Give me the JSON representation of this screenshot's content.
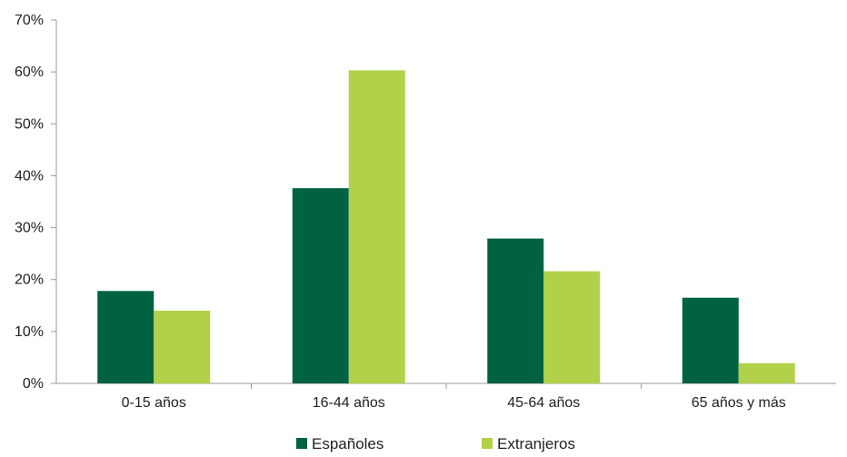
{
  "chart_data": {
    "type": "bar",
    "categories": [
      "0-15 años",
      "16-44 años",
      "45-64 años",
      "65 años y más"
    ],
    "series": [
      {
        "name": "Españoles",
        "values": [
          17.8,
          37.6,
          27.9,
          16.5
        ],
        "color": "#006241"
      },
      {
        "name": "Extranjeros",
        "values": [
          14.0,
          60.3,
          21.6,
          3.9
        ],
        "color": "#b1d14a"
      }
    ],
    "ylim": [
      0,
      70
    ],
    "yticks": [
      0,
      10,
      20,
      30,
      40,
      50,
      60,
      70
    ],
    "ytick_labels": [
      "0%",
      "10%",
      "20%",
      "30%",
      "40%",
      "50%",
      "60%",
      "70%"
    ],
    "grid": false,
    "legend_position": "bottom-center",
    "axis_color": "#999999"
  }
}
